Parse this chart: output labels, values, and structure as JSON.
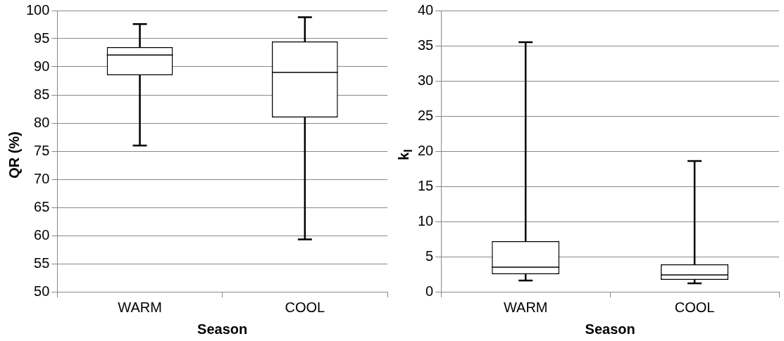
{
  "chart_data": [
    {
      "type": "box",
      "categories": [
        "WARM",
        "COOL"
      ],
      "xlabel": "Season",
      "ylabel": "QR (%)",
      "ylim": [
        50,
        100
      ],
      "yticks": [
        50,
        55,
        60,
        65,
        70,
        75,
        80,
        85,
        90,
        95,
        100
      ],
      "grid": "y",
      "legend": false,
      "boxes": [
        {
          "low": 76,
          "q1": 88.5,
          "median": 92.1,
          "q3": 93.5,
          "high": 97.6
        },
        {
          "low": 59.3,
          "q1": 81,
          "median": 89,
          "q3": 94.5,
          "high": 98.8
        }
      ]
    },
    {
      "type": "box",
      "categories": [
        "WARM",
        "COOL"
      ],
      "xlabel": "Season",
      "ylabel": "k$_{l}$",
      "ylim": [
        0,
        40
      ],
      "yticks": [
        0,
        5,
        10,
        15,
        20,
        25,
        30,
        35,
        40
      ],
      "grid": "y",
      "legend": false,
      "boxes": [
        {
          "low": 1.6,
          "q1": 2.5,
          "median": 3.5,
          "q3": 7.2,
          "high": 35.5
        },
        {
          "low": 1.2,
          "q1": 1.7,
          "median": 2.4,
          "q3": 3.9,
          "high": 18.6
        }
      ]
    }
  ]
}
